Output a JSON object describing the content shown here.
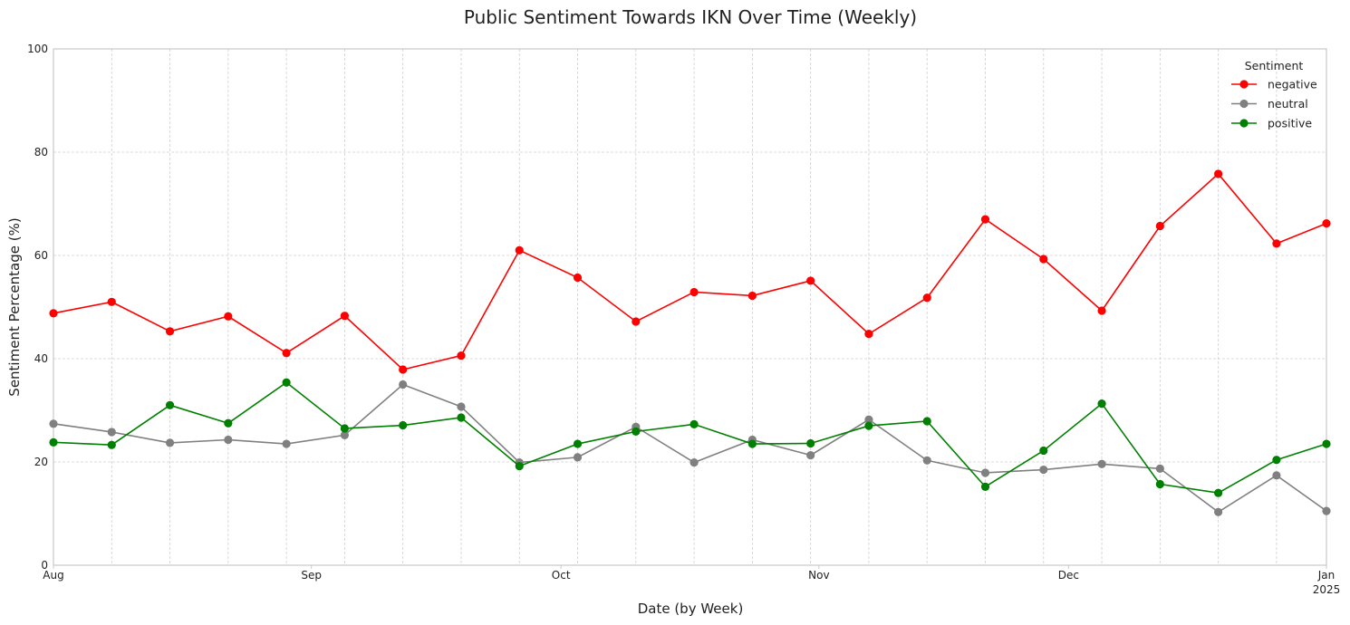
{
  "chart_data": {
    "type": "line",
    "title": "Public Sentiment Towards IKN Over Time (Weekly)",
    "xlabel": "Date (by Week)",
    "ylabel": "Sentiment Percentage (%)",
    "ylim": [
      0,
      100
    ],
    "yticks": [
      0,
      20,
      40,
      60,
      80,
      100
    ],
    "xlim": [
      "2024-08-01",
      "2025-01-01"
    ],
    "xticks": [
      {
        "date": "2024-08-01",
        "label": "Aug",
        "sublabel": ""
      },
      {
        "date": "2024-09-01",
        "label": "Sep",
        "sublabel": ""
      },
      {
        "date": "2024-10-01",
        "label": "Oct",
        "sublabel": ""
      },
      {
        "date": "2024-11-01",
        "label": "Nov",
        "sublabel": ""
      },
      {
        "date": "2024-12-01",
        "label": "Dec",
        "sublabel": ""
      },
      {
        "date": "2025-01-01",
        "label": "Jan",
        "sublabel": "2025"
      }
    ],
    "grid": true,
    "legend": {
      "title": "Sentiment",
      "placement": "top-right"
    },
    "x": [
      "2024-08-01",
      "2024-08-08",
      "2024-08-15",
      "2024-08-22",
      "2024-08-29",
      "2024-09-05",
      "2024-09-12",
      "2024-09-19",
      "2024-09-26",
      "2024-10-03",
      "2024-10-10",
      "2024-10-17",
      "2024-10-24",
      "2024-10-31",
      "2024-11-07",
      "2024-11-14",
      "2024-11-21",
      "2024-11-28",
      "2024-12-05",
      "2024-12-12",
      "2024-12-19",
      "2024-12-26",
      "2025-01-02"
    ],
    "series": [
      {
        "name": "negative",
        "color": "#ff0000",
        "values": [
          48.8,
          51.0,
          45.3,
          48.2,
          41.1,
          48.3,
          37.9,
          40.6,
          61.0,
          55.7,
          47.2,
          52.9,
          52.2,
          55.1,
          44.8,
          51.8,
          67.0,
          59.3,
          49.3,
          65.7,
          75.8,
          62.3,
          66.2
        ]
      },
      {
        "name": "neutral",
        "color": "#808080",
        "values": [
          27.4,
          25.8,
          23.7,
          24.3,
          23.5,
          25.2,
          35.0,
          30.7,
          19.9,
          20.9,
          26.8,
          19.9,
          24.3,
          21.3,
          28.2,
          20.3,
          17.9,
          18.5,
          19.6,
          18.7,
          10.3,
          17.4,
          10.5
        ]
      },
      {
        "name": "positive",
        "color": "#008000",
        "values": [
          23.8,
          23.3,
          31.0,
          27.5,
          35.4,
          26.5,
          27.1,
          28.6,
          19.2,
          23.5,
          25.9,
          27.3,
          23.5,
          23.6,
          27.0,
          27.9,
          15.2,
          22.2,
          31.3,
          15.7,
          14.0,
          20.4,
          23.5
        ]
      }
    ]
  }
}
